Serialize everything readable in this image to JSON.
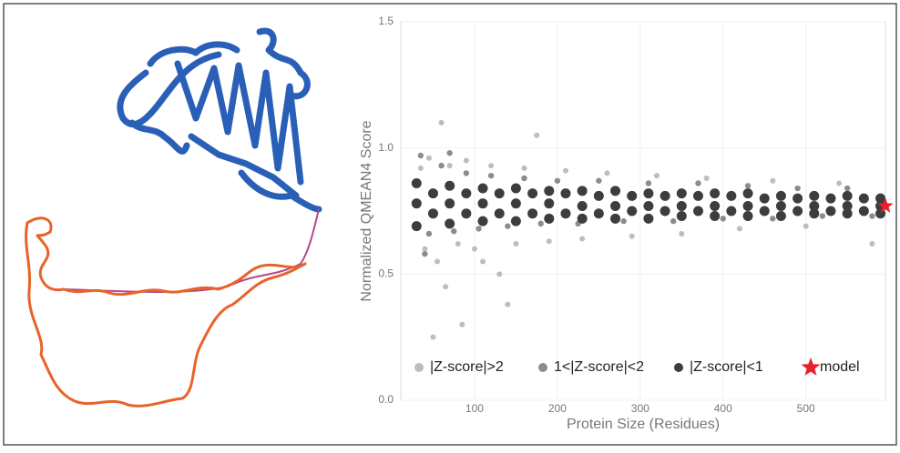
{
  "chart_data": {
    "type": "scatter",
    "x_label": "Protein Size (Residues)",
    "y_label": "Normalized QMEAN4 Score",
    "xlim": [
      11,
      596
    ],
    "ylim": [
      0,
      1.5
    ],
    "xticks": [
      100,
      200,
      300,
      400,
      500
    ],
    "yticks": [
      {
        "value": 0,
        "label": "0.0"
      },
      0.5,
      {
        "value": 1,
        "label": "1.0"
      },
      1.5
    ],
    "grid": true,
    "series": [
      {
        "name": "|Z-score|>2",
        "color": "#bdbdbd",
        "marker": "circle",
        "x": [
          35,
          40,
          45,
          55,
          60,
          65,
          70,
          80,
          90,
          100,
          110,
          120,
          130,
          140,
          150,
          160,
          175,
          190,
          210,
          230,
          260,
          290,
          320,
          350,
          380,
          420,
          460,
          500,
          540,
          580,
          50,
          85
        ],
        "values": [
          0.92,
          0.6,
          0.96,
          0.55,
          1.1,
          0.45,
          0.93,
          0.62,
          0.95,
          0.6,
          0.55,
          0.93,
          0.5,
          0.38,
          0.62,
          0.92,
          1.05,
          0.63,
          0.91,
          0.64,
          0.9,
          0.65,
          0.89,
          0.66,
          0.88,
          0.68,
          0.87,
          0.69,
          0.86,
          0.62,
          0.25,
          0.3
        ]
      },
      {
        "name": "1<|Z-score|<2",
        "color": "#8c8c8c",
        "marker": "circle",
        "x": [
          35,
          45,
          60,
          75,
          90,
          105,
          120,
          140,
          160,
          180,
          200,
          225,
          250,
          280,
          310,
          340,
          370,
          400,
          430,
          460,
          490,
          520,
          550,
          580,
          40,
          70
        ],
        "values": [
          0.97,
          0.66,
          0.93,
          0.67,
          0.9,
          0.68,
          0.89,
          0.69,
          0.88,
          0.7,
          0.87,
          0.7,
          0.87,
          0.71,
          0.86,
          0.71,
          0.86,
          0.72,
          0.85,
          0.72,
          0.84,
          0.73,
          0.84,
          0.73,
          0.58,
          0.98
        ]
      },
      {
        "name": "|Z-score|<1",
        "color": "#3d3d3d",
        "marker": "circle",
        "x": [
          30,
          70,
          110,
          150,
          190,
          230,
          270,
          310,
          350,
          390,
          430,
          470,
          510,
          550,
          590,
          30,
          70,
          110,
          150,
          190,
          230,
          270,
          310,
          350,
          390,
          430,
          470,
          510,
          550,
          590,
          30,
          70,
          110,
          150,
          190,
          230,
          270,
          310,
          350,
          390,
          430,
          470,
          510,
          550,
          590,
          50,
          90,
          130,
          170,
          210,
          250,
          290,
          330,
          370,
          410,
          450,
          490,
          530,
          570,
          50,
          90,
          130,
          170,
          210,
          250,
          290,
          330,
          370,
          410,
          450,
          490,
          530,
          570
        ],
        "values": [
          0.86,
          0.85,
          0.84,
          0.84,
          0.83,
          0.83,
          0.83,
          0.82,
          0.82,
          0.82,
          0.82,
          0.81,
          0.81,
          0.81,
          0.8,
          0.78,
          0.78,
          0.78,
          0.78,
          0.78,
          0.77,
          0.77,
          0.77,
          0.77,
          0.77,
          0.77,
          0.77,
          0.77,
          0.77,
          0.77,
          0.69,
          0.7,
          0.71,
          0.71,
          0.72,
          0.72,
          0.72,
          0.72,
          0.73,
          0.73,
          0.73,
          0.73,
          0.74,
          0.74,
          0.74,
          0.82,
          0.82,
          0.82,
          0.82,
          0.82,
          0.81,
          0.81,
          0.81,
          0.81,
          0.81,
          0.8,
          0.8,
          0.8,
          0.8,
          0.74,
          0.74,
          0.74,
          0.74,
          0.74,
          0.74,
          0.75,
          0.75,
          0.75,
          0.75,
          0.75,
          0.75,
          0.75,
          0.75
        ]
      },
      {
        "name": "model",
        "color": "#e8202a",
        "marker": "star",
        "x": [
          596
        ],
        "values": [
          0.77
        ]
      }
    ]
  }
}
